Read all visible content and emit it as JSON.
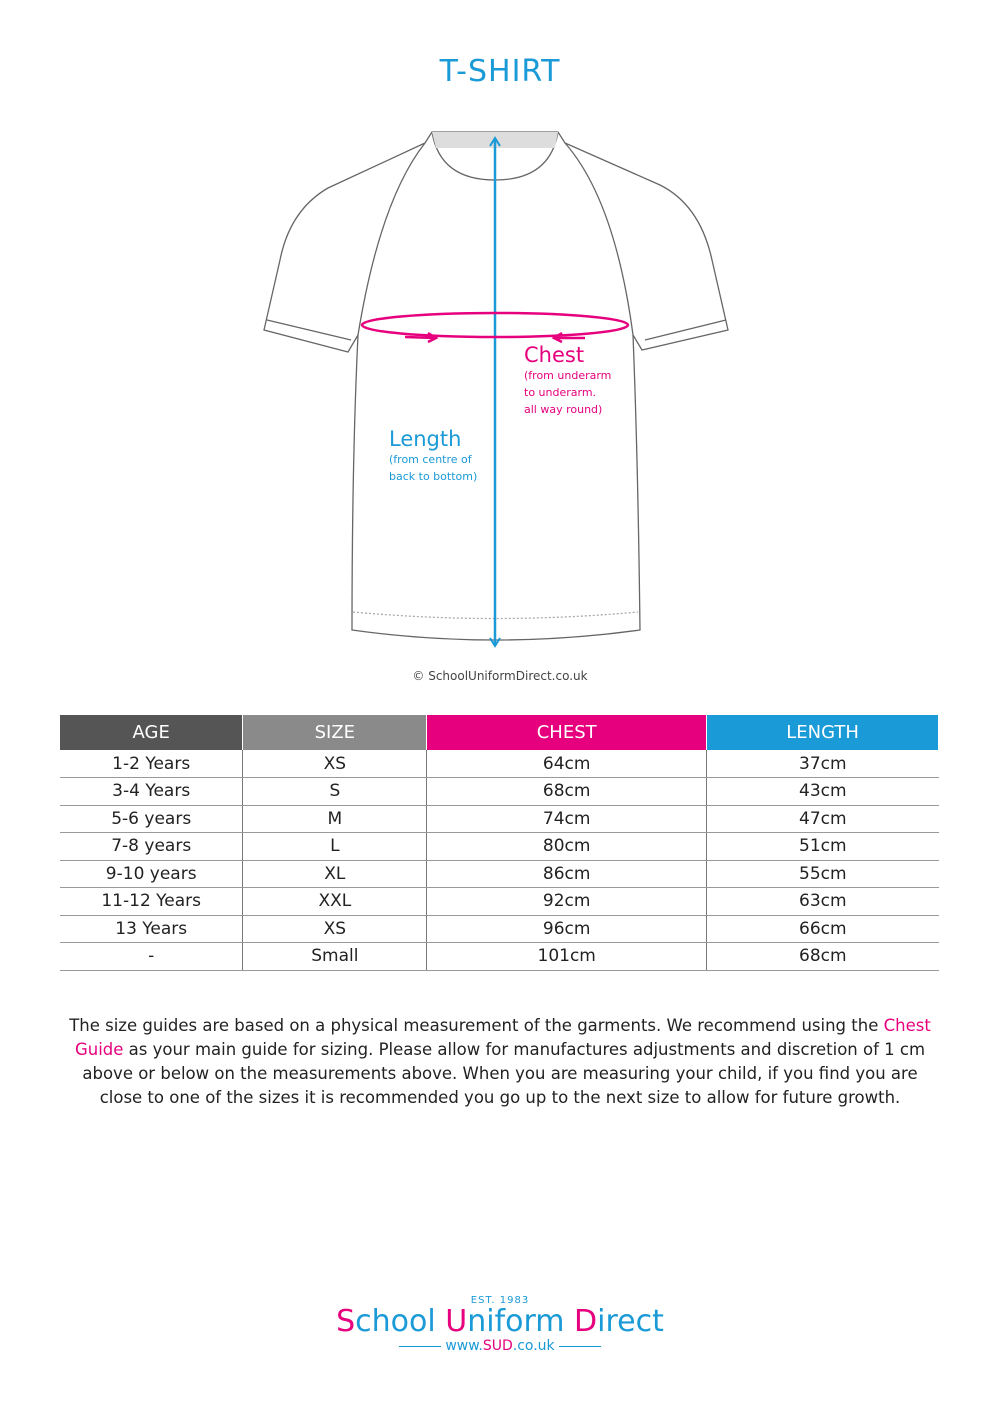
{
  "title": "T-SHIRT",
  "diagram": {
    "chest": {
      "label": "Chest",
      "desc": [
        "(from underarm",
        "to underarm.",
        "all way round)"
      ]
    },
    "length": {
      "label": "Length",
      "desc": [
        "(from centre of",
        "back to bottom)"
      ]
    },
    "copyright": "© SchoolUniformDirect.co.uk"
  },
  "table": {
    "headers": [
      "AGE",
      "SIZE",
      "CHEST",
      "LENGTH"
    ],
    "header_colors": [
      "#555555",
      "#8a8a8a",
      "#e6007e",
      "#1a9ad6"
    ],
    "rows": [
      [
        "1-2 Years",
        "XS",
        "64cm",
        "37cm"
      ],
      [
        "3-4 Years",
        "S",
        "68cm",
        "43cm"
      ],
      [
        "5-6 years",
        "M",
        "74cm",
        "47cm"
      ],
      [
        "7-8 years",
        "L",
        "80cm",
        "51cm"
      ],
      [
        "9-10 years",
        "XL",
        "86cm",
        "55cm"
      ],
      [
        "11-12 Years",
        "XXL",
        "92cm",
        "63cm"
      ],
      [
        "13 Years",
        "XS",
        "96cm",
        "66cm"
      ],
      [
        "-",
        "Small",
        "101cm",
        "68cm"
      ]
    ]
  },
  "note": {
    "p1": "The size guides are based on a physical measurement of the garments. We recommend using the ",
    "highlight": "Chest Guide",
    "p2": " as your main guide for sizing. Please allow for manufactures adjustments and discretion of  1 cm above or below on the measurements above. When you are measuring your child, if you find you are close to one of the sizes it is recommended you go up to the next size to allow for future growth."
  },
  "logo": {
    "est": "EST. 1983",
    "name": "School Uniform Direct",
    "url": "www.SUD.co.uk"
  },
  "colors": {
    "blue": "#1a9ad6",
    "pink": "#e6007e"
  }
}
